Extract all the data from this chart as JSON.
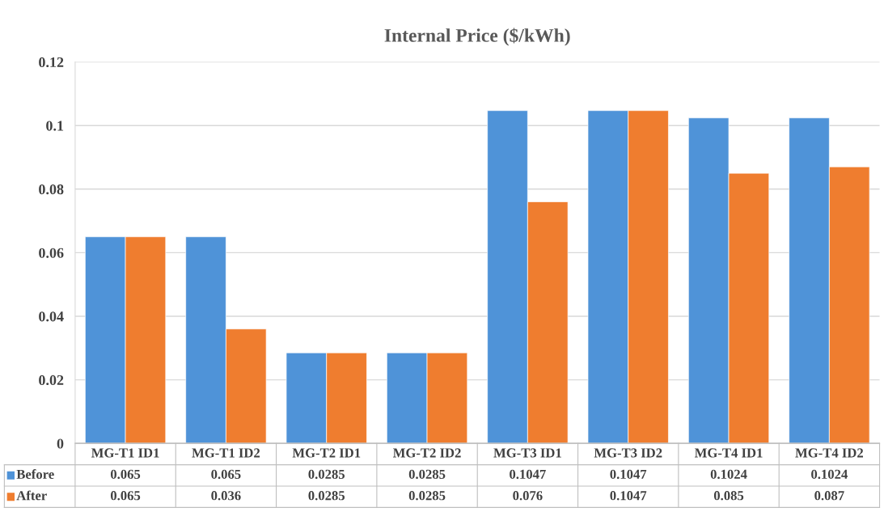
{
  "chart_data": {
    "type": "bar",
    "title": "Internal Price ($/kWh)",
    "categories": [
      "MG-T1 ID1",
      "MG-T1 ID2",
      "MG-T2 ID1",
      "MG-T2 ID2",
      "MG-T3 ID1",
      "MG-T3 ID2",
      "MG-T4 ID1",
      "MG-T4 ID2"
    ],
    "series": [
      {
        "name": "Before",
        "color": "#4f93d8",
        "values": [
          0.065,
          0.065,
          0.0285,
          0.0285,
          0.1047,
          0.1047,
          0.1024,
          0.1024
        ]
      },
      {
        "name": "After",
        "color": "#ef7d2f",
        "values": [
          0.065,
          0.036,
          0.0285,
          0.0285,
          0.076,
          0.1047,
          0.085,
          0.087
        ]
      }
    ],
    "ylim": [
      0,
      0.12
    ],
    "yticks": [
      0,
      0.02,
      0.04,
      0.06,
      0.08,
      0.1,
      0.12
    ],
    "grid": "y",
    "data_labels": true,
    "legend": "bottom left"
  }
}
